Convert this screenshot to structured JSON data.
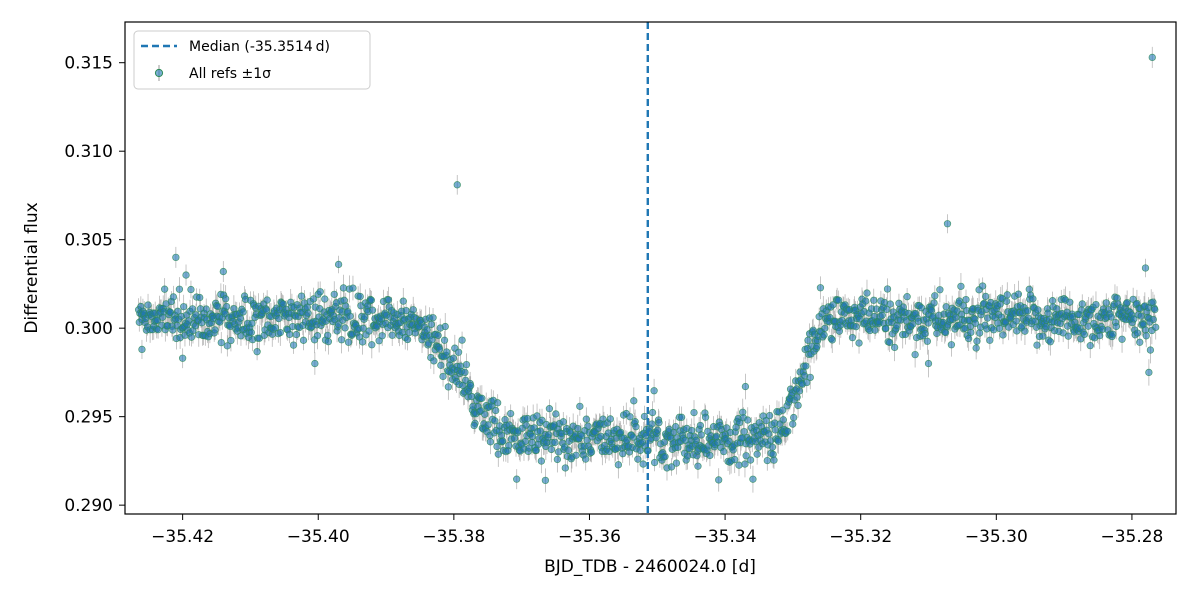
{
  "chart_data": {
    "type": "scatter",
    "title": "",
    "xlabel": "BJD_TDB - 2460024.0 [d]",
    "ylabel": "Differential flux",
    "xlim": [
      -35.4285,
      -35.2735
    ],
    "ylim": [
      0.2895,
      0.3173
    ],
    "x_ticks": [
      -35.42,
      -35.4,
      -35.38,
      -35.36,
      -35.34,
      -35.32,
      -35.3,
      -35.28
    ],
    "x_tick_labels": [
      "−35.42",
      "−35.40",
      "−35.38",
      "−35.36",
      "−35.34",
      "−35.32",
      "−35.30",
      "−35.28"
    ],
    "y_ticks": [
      0.29,
      0.295,
      0.3,
      0.305,
      0.31,
      0.315
    ],
    "y_tick_labels": [
      "0.290",
      "0.295",
      "0.300",
      "0.305",
      "0.310",
      "0.315"
    ],
    "grid": false,
    "legend_position": "top-left",
    "median_line": {
      "x": -35.3514,
      "label": "Median (-35.3514 d)",
      "color": "#1f77b4"
    },
    "series": [
      {
        "name": "All refs ±1σ",
        "color": "#1f77b4",
        "edge_color": "#2e8b57",
        "error_color": "#9a9a9a",
        "x_range": [
          -35.4265,
          -35.2765
        ],
        "n_points": 1400,
        "typical_error": 0.0006,
        "model": {
          "out_of_transit_flux": 0.3005,
          "in_transit_flux": 0.2938,
          "ingress": [
            -35.387,
            -35.371
          ],
          "egress": [
            -35.333,
            -35.3245
          ],
          "scatter": 0.0007
        },
        "sample_points": [
          [
            -35.426,
            0.3012
          ],
          [
            -35.42,
            0.3005
          ],
          [
            -35.415,
            0.301
          ],
          [
            -35.41,
            0.3008
          ],
          [
            -35.405,
            0.3007
          ],
          [
            -35.4,
            0.3006
          ],
          [
            -35.395,
            0.3004
          ],
          [
            -35.39,
            0.3003
          ],
          [
            -35.386,
            0.3
          ],
          [
            -35.383,
            0.2995
          ],
          [
            -35.38,
            0.2985
          ],
          [
            -35.377,
            0.297
          ],
          [
            -35.374,
            0.2958
          ],
          [
            -35.371,
            0.295
          ],
          [
            -35.368,
            0.2944
          ],
          [
            -35.365,
            0.2942
          ],
          [
            -35.36,
            0.2938
          ],
          [
            -35.355,
            0.2937
          ],
          [
            -35.35,
            0.2935
          ],
          [
            -35.345,
            0.2936
          ],
          [
            -35.34,
            0.2937
          ],
          [
            -35.337,
            0.294
          ],
          [
            -35.334,
            0.295
          ],
          [
            -35.331,
            0.2965
          ],
          [
            -35.328,
            0.2978
          ],
          [
            -35.325,
            0.2995
          ],
          [
            -35.322,
            0.3001
          ],
          [
            -35.315,
            0.3002
          ],
          [
            -35.31,
            0.3003
          ],
          [
            -35.305,
            0.3002
          ],
          [
            -35.3,
            0.3004
          ],
          [
            -35.295,
            0.3003
          ],
          [
            -35.29,
            0.3005
          ],
          [
            -35.285,
            0.3004
          ],
          [
            -35.28,
            0.3006
          ],
          [
            -35.277,
            0.3003
          ]
        ],
        "outliers": [
          [
            -35.3795,
            0.3081
          ],
          [
            -35.3072,
            0.3059
          ],
          [
            -35.277,
            0.3153
          ],
          [
            -35.421,
            0.304
          ],
          [
            -35.397,
            0.3036
          ],
          [
            -35.4195,
            0.303
          ],
          [
            -35.414,
            0.3032
          ],
          [
            -35.278,
            0.3034
          ],
          [
            -35.2775,
            0.2975
          ],
          [
            -35.3665,
            0.2914
          ],
          [
            -35.377,
            0.2945
          ],
          [
            -35.344,
            0.2922
          ],
          [
            -35.337,
            0.2967
          ],
          [
            -35.31,
            0.298
          ],
          [
            -35.4005,
            0.298
          ],
          [
            -35.42,
            0.2983
          ],
          [
            -35.426,
            0.2988
          ]
        ]
      }
    ]
  }
}
